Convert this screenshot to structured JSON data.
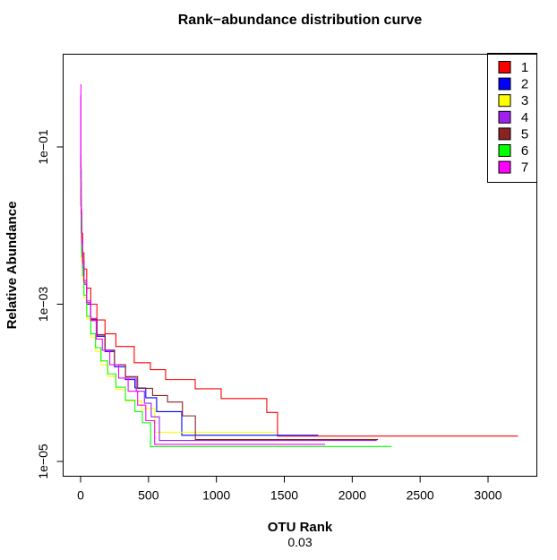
{
  "figure": {
    "title": "Rank−abundance distribution curve",
    "y_label": "Relative Abundance",
    "x_label": "OTU Rank",
    "x_sublabel": "0.03"
  },
  "chart_data": {
    "type": "line",
    "title": "Rank−abundance distribution curve",
    "xlabel": "OTU Rank",
    "sub_label": "0.03",
    "ylabel": "Relative Abundance",
    "y_scale": "log10",
    "grid": false,
    "x_ticks": [
      0,
      500,
      1000,
      1500,
      2000,
      2500,
      3000
    ],
    "y_ticks": [
      {
        "label": "1e−01",
        "value": 0.1
      },
      {
        "label": "1e−03",
        "value": 0.001
      },
      {
        "label": "1e−05",
        "value": 1e-05
      }
    ],
    "xlim": [
      0,
      3250
    ],
    "ylim": [
      1.2e-05,
      0.62
    ],
    "frame_color": "#000000",
    "legend": {
      "position": "topright",
      "entries": [
        {
          "label": "1",
          "color": "#FF0000"
        },
        {
          "label": "2",
          "color": "#0000FF"
        },
        {
          "label": "3",
          "color": "#FFFF00"
        },
        {
          "label": "4",
          "color": "#A020F0"
        },
        {
          "label": "5",
          "color": "#8B2323"
        },
        {
          "label": "6",
          "color": "#00FF00"
        },
        {
          "label": "7",
          "color": "#FF00FF"
        }
      ]
    },
    "series": [
      {
        "name": "1",
        "color": "#FF0000",
        "points": [
          [
            1,
            0.08
          ],
          [
            2,
            0.035
          ],
          [
            4,
            0.016
          ],
          [
            8,
            0.008
          ],
          [
            15,
            0.0045
          ],
          [
            25,
            0.0028
          ],
          [
            45,
            0.0016
          ],
          [
            75,
            0.001
          ],
          [
            120,
            0.00063
          ],
          [
            180,
            0.00042
          ],
          [
            260,
            0.00029
          ],
          [
            395,
            0.00018
          ],
          [
            514,
            0.000147
          ],
          [
            626,
            0.00011
          ],
          [
            844,
            8.4e-05
          ],
          [
            1035,
            6.3e-05
          ],
          [
            1371,
            4.2e-05
          ],
          [
            1450,
            2.1e-05
          ],
          [
            3220,
            2.1e-05
          ]
        ]
      },
      {
        "name": "2",
        "color": "#0000FF",
        "points": [
          [
            1,
            0.05
          ],
          [
            2,
            0.022
          ],
          [
            4,
            0.01
          ],
          [
            8,
            0.005
          ],
          [
            15,
            0.003
          ],
          [
            25,
            0.0018
          ],
          [
            45,
            0.001
          ],
          [
            75,
            0.00062
          ],
          [
            120,
            0.00039
          ],
          [
            180,
            0.00025
          ],
          [
            250,
            0.00016
          ],
          [
            330,
            0.00011
          ],
          [
            400,
            8.6e-05
          ],
          [
            480,
            6.45e-05
          ],
          [
            560,
            4.3e-05
          ],
          [
            745,
            2.15e-05
          ],
          [
            1750,
            2.15e-05
          ]
        ]
      },
      {
        "name": "3",
        "color": "#FFFF00",
        "points": [
          [
            1,
            0.04
          ],
          [
            2,
            0.016
          ],
          [
            4,
            0.007
          ],
          [
            8,
            0.0035
          ],
          [
            15,
            0.002
          ],
          [
            25,
            0.0012
          ],
          [
            45,
            0.00065
          ],
          [
            75,
            0.00038
          ],
          [
            110,
            0.00025
          ],
          [
            150,
            0.00017
          ],
          [
            200,
            0.00012
          ],
          [
            260,
            8.2e-05
          ],
          [
            330,
            5.9e-05
          ],
          [
            448,
            4.7e-05
          ],
          [
            547,
            2.35e-05
          ],
          [
            1430,
            2.35e-05
          ]
        ]
      },
      {
        "name": "4",
        "color": "#A020F0",
        "points": [
          [
            1,
            0.45
          ],
          [
            2,
            0.05
          ],
          [
            4,
            0.015
          ],
          [
            8,
            0.0065
          ],
          [
            15,
            0.0035
          ],
          [
            25,
            0.002
          ],
          [
            45,
            0.0011
          ],
          [
            75,
            0.00066
          ],
          [
            120,
            0.00041
          ],
          [
            180,
            0.00026
          ],
          [
            250,
            0.00017
          ],
          [
            330,
            0.000115
          ],
          [
            410,
            7.8e-05
          ],
          [
            470,
            5.5e-05
          ],
          [
            520,
            3.7e-05
          ],
          [
            580,
            1.85e-05
          ],
          [
            2180,
            1.85e-05
          ]
        ]
      },
      {
        "name": "5",
        "color": "#8B2323",
        "points": [
          [
            1,
            0.03
          ],
          [
            2,
            0.018
          ],
          [
            4,
            0.009
          ],
          [
            8,
            0.0048
          ],
          [
            15,
            0.0029
          ],
          [
            25,
            0.0018
          ],
          [
            45,
            0.00105
          ],
          [
            75,
            0.00064
          ],
          [
            120,
            0.000405
          ],
          [
            180,
            0.00026
          ],
          [
            250,
            0.00017
          ],
          [
            330,
            0.00012
          ],
          [
            420,
            8.5e-05
          ],
          [
            530,
            6.9e-05
          ],
          [
            640,
            5.7e-05
          ],
          [
            750,
            3.8e-05
          ],
          [
            845,
            1.9e-05
          ],
          [
            2190,
            1.9e-05
          ]
        ]
      },
      {
        "name": "6",
        "color": "#00FF00",
        "points": [
          [
            1,
            0.055
          ],
          [
            2,
            0.02
          ],
          [
            4,
            0.008
          ],
          [
            8,
            0.004
          ],
          [
            15,
            0.0023
          ],
          [
            25,
            0.0013
          ],
          [
            45,
            0.0007
          ],
          [
            75,
            0.00042
          ],
          [
            110,
            0.00028
          ],
          [
            150,
            0.00019
          ],
          [
            200,
            0.00013
          ],
          [
            260,
            8.8e-05
          ],
          [
            330,
            6e-05
          ],
          [
            400,
            4.3e-05
          ],
          [
            455,
            3.1e-05
          ],
          [
            515,
            1.55e-05
          ],
          [
            2290,
            1.55e-05
          ]
        ]
      },
      {
        "name": "7",
        "color": "#FF00FF",
        "points": [
          [
            1,
            0.62
          ],
          [
            2,
            0.055
          ],
          [
            4,
            0.014
          ],
          [
            8,
            0.006
          ],
          [
            15,
            0.0033
          ],
          [
            25,
            0.0019
          ],
          [
            45,
            0.00105
          ],
          [
            75,
            0.00062
          ],
          [
            115,
            0.00036
          ],
          [
            160,
            0.00026
          ],
          [
            215,
            0.00017
          ],
          [
            280,
            0.000115
          ],
          [
            350,
            7.8e-05
          ],
          [
            420,
            5.2e-05
          ],
          [
            480,
            3.3e-05
          ],
          [
            545,
            1.65e-05
          ],
          [
            1800,
            1.65e-05
          ]
        ]
      }
    ]
  }
}
